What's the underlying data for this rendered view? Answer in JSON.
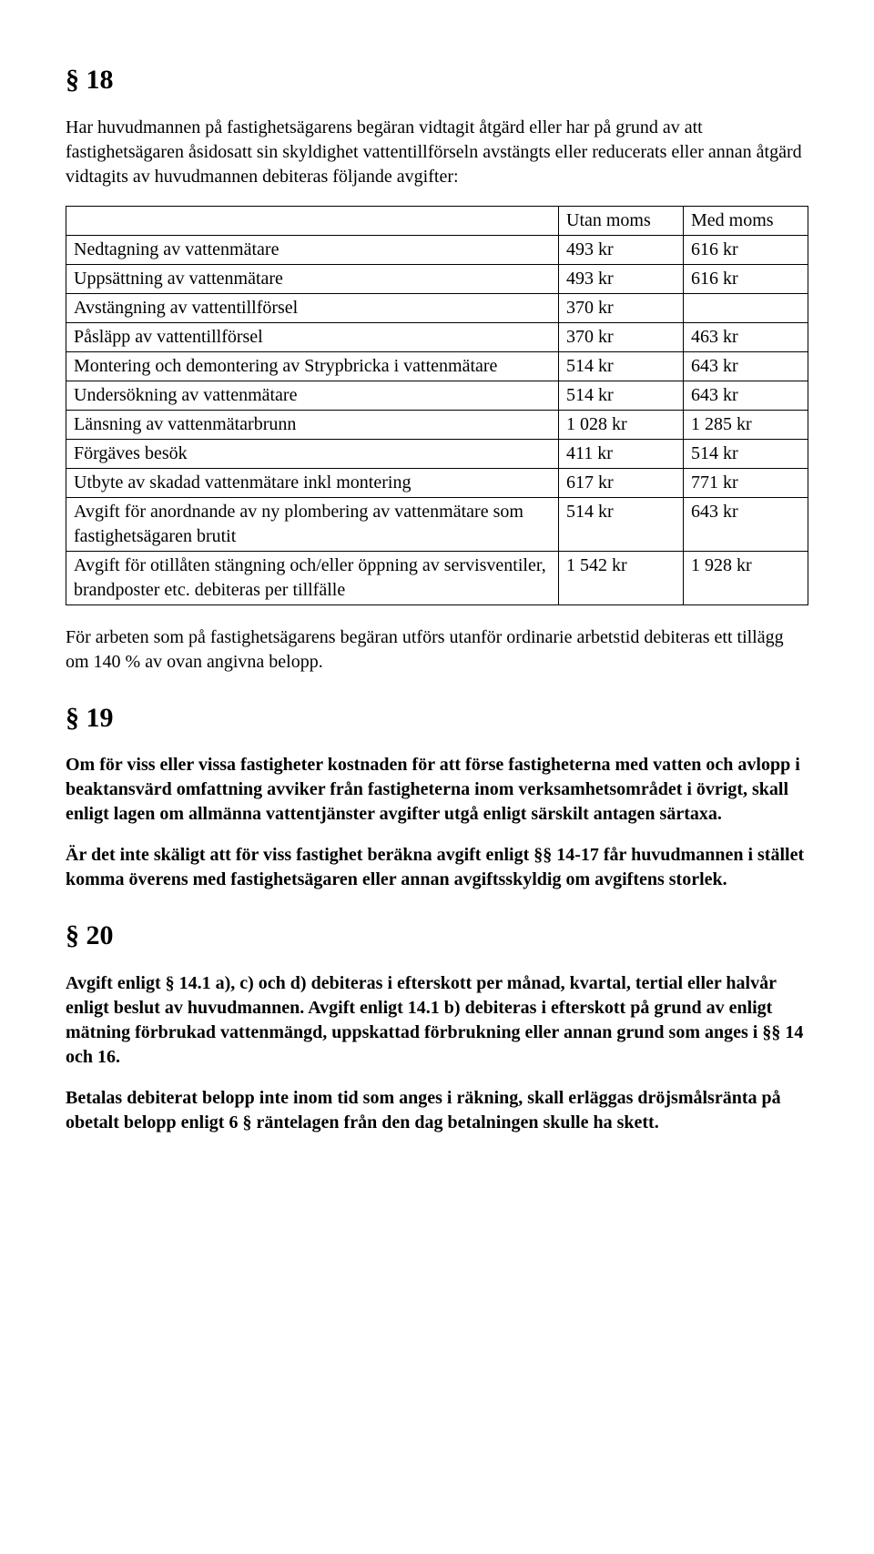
{
  "s18": {
    "heading": "§ 18",
    "intro": "Har huvudmannen på fastighetsägarens begäran vidtagit åtgärd eller har på grund av att fastighetsägaren åsidosatt sin skyldighet vattentillförseln avstängts eller reducerats eller annan åtgärd vidtagits av huvudmannen debiteras följande avgifter:",
    "table": {
      "columns": [
        "",
        "Utan moms",
        "Med moms"
      ],
      "rows": [
        [
          "Nedtagning av vattenmätare",
          "493 kr",
          "616 kr"
        ],
        [
          "Uppsättning av vattenmätare",
          "493 kr",
          "616 kr"
        ],
        [
          "Avstängning av vattentillförsel",
          "370 kr",
          ""
        ],
        [
          "Påsläpp av vattentillförsel",
          "370 kr",
          "463 kr"
        ],
        [
          "Montering och demontering av Strypbricka i vattenmätare",
          "514 kr",
          "643 kr"
        ],
        [
          "Undersökning av vattenmätare",
          "514 kr",
          "643 kr"
        ],
        [
          "Länsning av vattenmätarbrunn",
          "1 028 kr",
          "1 285 kr"
        ],
        [
          "Förgäves besök",
          "411 kr",
          "514 kr"
        ],
        [
          "Utbyte av skadad vattenmätare inkl montering",
          "617 kr",
          "771 kr"
        ],
        [
          "Avgift för anordnande av ny plombering av vattenmätare som fastighetsägaren brutit",
          "514 kr",
          "643 kr"
        ],
        [
          "Avgift för otillåten stängning och/eller öppning av servisventiler, brandposter etc. debiteras per tillfälle",
          "1 542 kr",
          "1 928 kr"
        ]
      ]
    },
    "outro": "För arbeten som på fastighetsägarens begäran utförs utanför ordinarie arbetstid debiteras ett tillägg om 140 % av ovan angivna belopp."
  },
  "s19": {
    "heading": "§ 19",
    "p1": "Om för viss eller vissa fastigheter kostnaden för att förse fastigheterna med vatten och avlopp i beaktansvärd omfattning avviker från fastigheterna inom verksamhetsområdet i övrigt, skall enligt lagen om allmänna vattentjänster avgifter utgå enligt särskilt antagen särtaxa.",
    "p2": "Är det inte skäligt att för viss fastighet beräkna avgift enligt §§ 14-17 får huvudmannen i stället komma överens med fastighetsägaren eller annan avgiftsskyldig om avgiftens storlek."
  },
  "s20": {
    "heading": "§ 20",
    "p1": "Avgift enligt § 14.1 a), c) och d) debiteras i efterskott per månad, kvartal, tertial eller halvår enligt beslut av huvudmannen. Avgift enligt 14.1 b) debiteras i efterskott på grund av enligt mätning förbrukad vattenmängd, uppskattad förbrukning eller annan grund som anges i §§ 14 och 16.",
    "p2": "Betalas debiterat belopp inte inom tid som anges i räkning, skall erläggas dröjsmålsränta på obetalt belopp enligt 6 § räntelagen från den dag betalningen skulle ha skett."
  }
}
